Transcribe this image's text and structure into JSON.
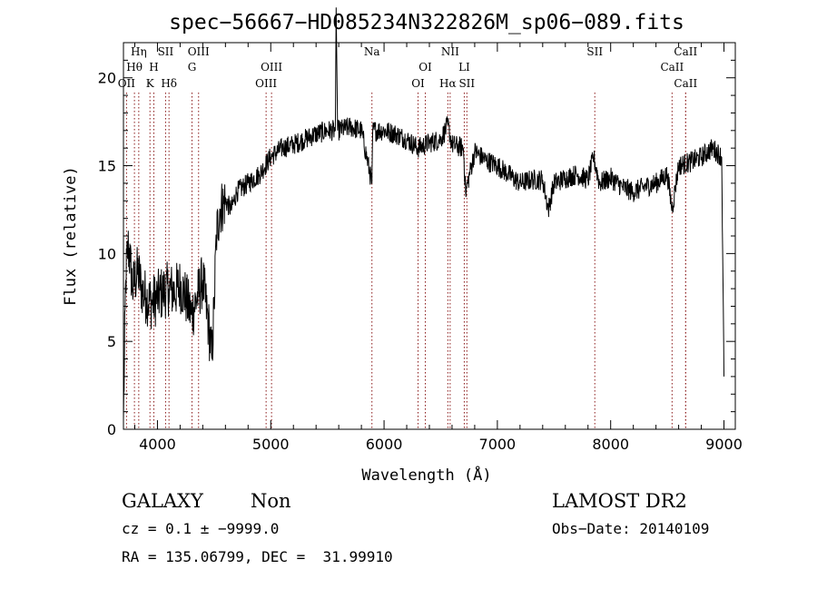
{
  "chart_data": {
    "type": "line",
    "title": "spec−56667−HD085234N322826M_sp06−089.fits",
    "xlabel": "Wavelength (Å)",
    "ylabel": "Flux (relative)",
    "xlim": [
      3700,
      9100
    ],
    "ylim": [
      0,
      22
    ],
    "xticks": [
      4000,
      5000,
      6000,
      7000,
      8000,
      9000
    ],
    "yticks": [
      0,
      5,
      10,
      15,
      20
    ],
    "grid": false,
    "line_color": "#000000",
    "marker_color": "#8b1a1a",
    "series": [
      {
        "x": [
          3700,
          3720,
          3740,
          3760,
          3780,
          3800,
          3830,
          3860,
          3900,
          3950,
          4000,
          4050,
          4100,
          4150,
          4200,
          4250,
          4300,
          4350,
          4400,
          4450,
          4480,
          4500,
          4520,
          4550,
          4600,
          4650,
          4700,
          4800,
          4900,
          5000,
          5100,
          5200,
          5300,
          5400,
          5500,
          5570,
          5577,
          5590,
          5700,
          5800,
          5893,
          5900,
          6000,
          6100,
          6200,
          6300,
          6400,
          6500,
          6563,
          6600,
          6700,
          6720,
          6800,
          6900,
          7000,
          7100,
          7200,
          7300,
          7400,
          7450,
          7500,
          7600,
          7700,
          7800,
          7850,
          7900,
          8000,
          8100,
          8200,
          8300,
          8400,
          8500,
          8542,
          8600,
          8700,
          8800,
          8900,
          8980,
          9000
        ],
        "y": [
          0.5,
          8.5,
          10.5,
          9.5,
          8,
          8.5,
          9,
          8,
          7.5,
          7.2,
          7.5,
          7.8,
          8,
          7.8,
          8.2,
          7.5,
          6.5,
          7.5,
          8.5,
          6,
          4,
          7,
          11,
          12.5,
          13,
          12.5,
          13.5,
          14,
          14.5,
          15.5,
          16,
          16.2,
          16.5,
          16.8,
          17,
          17,
          24,
          17,
          17.2,
          17,
          14,
          17,
          17,
          16.8,
          16.5,
          16,
          16.3,
          16.5,
          17.3,
          16.2,
          16,
          13.5,
          15.8,
          15.3,
          15,
          14.5,
          14,
          14.2,
          14.2,
          12.5,
          14,
          14.3,
          14.5,
          14.2,
          15.5,
          14,
          14.3,
          13.8,
          13.5,
          13.8,
          14,
          14.5,
          12.5,
          15,
          15.2,
          15.5,
          16,
          15.5,
          3
        ]
      }
    ],
    "line_markers": [
      {
        "label": "Hη",
        "wl": 3835,
        "row": 0
      },
      {
        "label": "Hθ",
        "wl": 3797,
        "row": 1
      },
      {
        "label": "OII",
        "wl": 3727,
        "row": 2
      },
      {
        "label": "SII",
        "wl": 4072,
        "row": 0
      },
      {
        "label": "H",
        "wl": 3968,
        "row": 1
      },
      {
        "label": "K",
        "wl": 3934,
        "row": 2
      },
      {
        "label": "Hδ",
        "wl": 4102,
        "row": 2
      },
      {
        "label": "OIII",
        "wl": 4363,
        "row": 0
      },
      {
        "label": "G",
        "wl": 4305,
        "row": 1
      },
      {
        "label": "OIII",
        "wl": 5007,
        "row": 1
      },
      {
        "label": "OIII",
        "wl": 4959,
        "row": 2
      },
      {
        "label": "Na",
        "wl": 5893,
        "row": 0
      },
      {
        "label": "OI",
        "wl": 6364,
        "row": 1
      },
      {
        "label": "OI",
        "wl": 6300,
        "row": 2
      },
      {
        "label": "NII",
        "wl": 6583,
        "row": 0
      },
      {
        "label": "LI",
        "wl": 6708,
        "row": 1
      },
      {
        "label": "Hα",
        "wl": 6563,
        "row": 2
      },
      {
        "label": "SII",
        "wl": 6731,
        "row": 2
      },
      {
        "label": "SII",
        "wl": 7860,
        "row": 0
      },
      {
        "label": "CaII",
        "wl": 8662,
        "row": 0
      },
      {
        "label": "CaII",
        "wl": 8542,
        "row": 1
      },
      {
        "label": "CaII",
        "wl": 8662,
        "row": 2
      }
    ]
  },
  "info": {
    "class": "GALAXY",
    "subclass": "Non",
    "survey": "LAMOST DR2",
    "cz": "cz = 0.1 ± −9999.0",
    "obs_date": "Obs−Date: 20140109",
    "coords": "RA = 135.06799, DEC =  31.99910"
  }
}
